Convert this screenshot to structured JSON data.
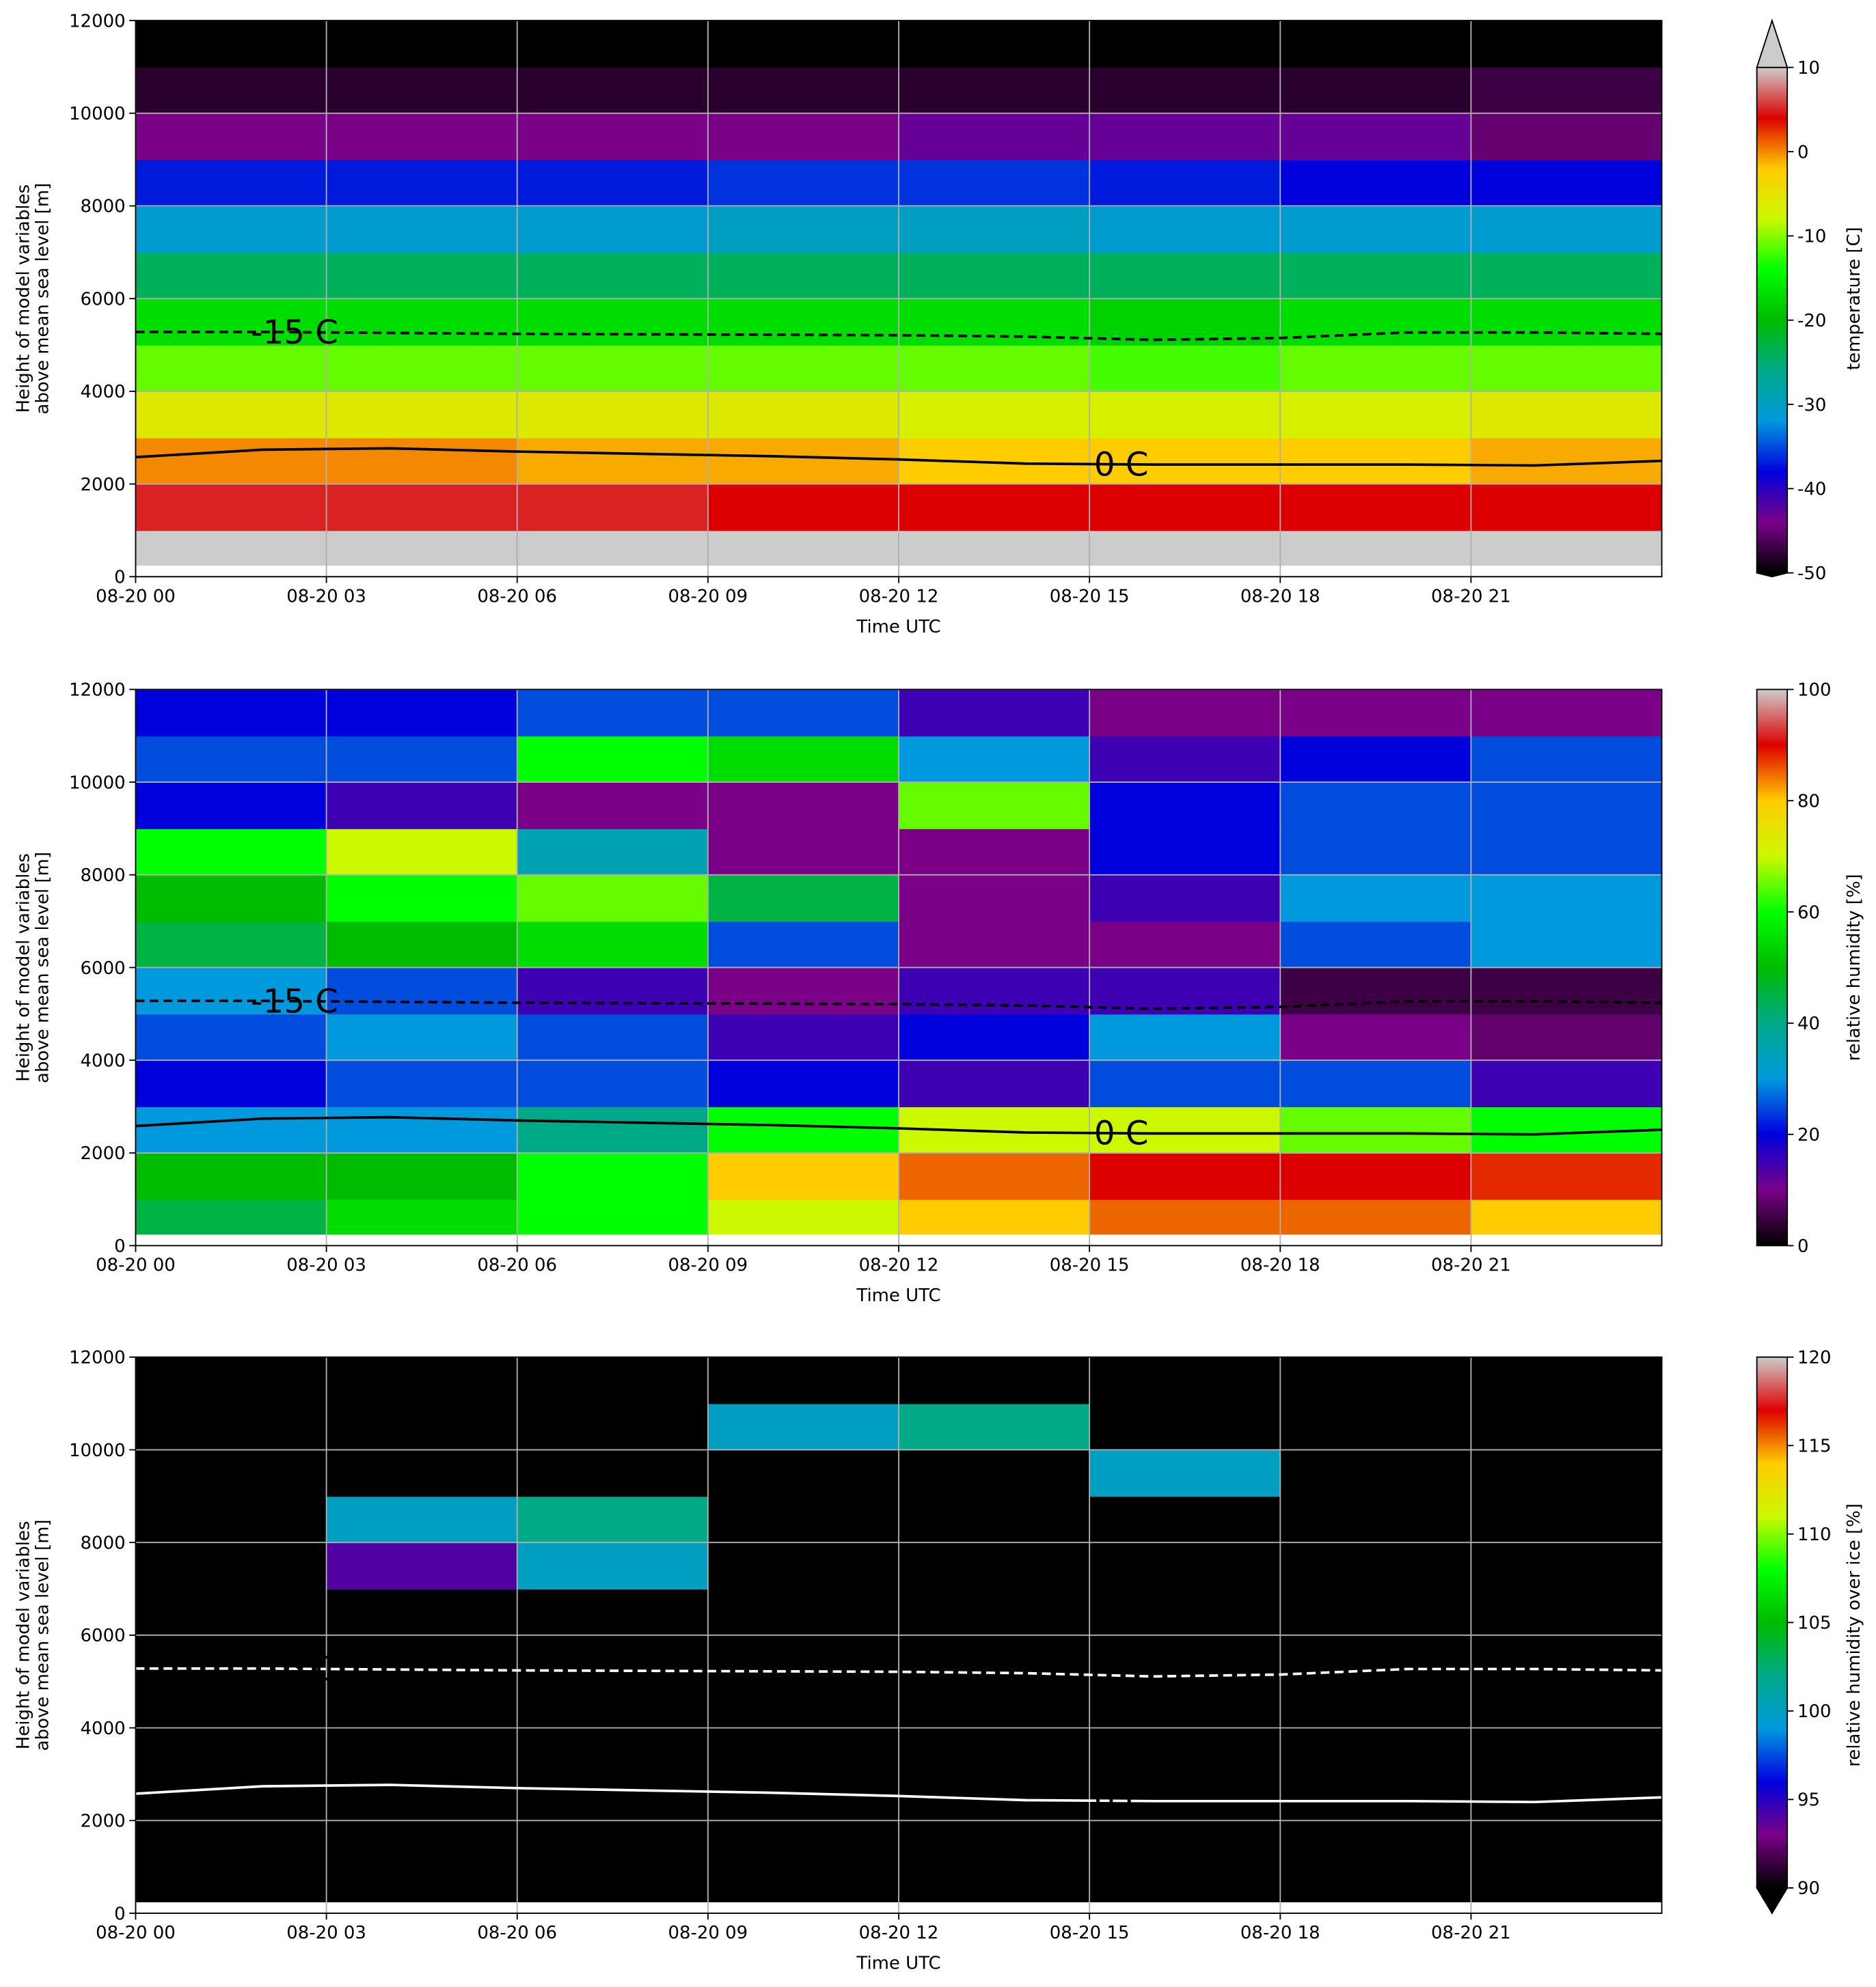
{
  "chart_data": [
    {
      "type": "heatmap",
      "ylabel": [
        "Height of model variables",
        "above mean sea level [m]"
      ],
      "xlabel": "Time UTC",
      "xlim": [
        0,
        24
      ],
      "xticks": [
        {
          "value": 0,
          "label": "08-20 00"
        },
        {
          "value": 3,
          "label": "08-20 03"
        },
        {
          "value": 6,
          "label": "08-20 06"
        },
        {
          "value": 9,
          "label": "08-20 09"
        },
        {
          "value": 12,
          "label": "08-20 12"
        },
        {
          "value": 15,
          "label": "08-20 15"
        },
        {
          "value": 18,
          "label": "08-20 18"
        },
        {
          "value": 21,
          "label": "08-20 21"
        }
      ],
      "ylim": [
        0,
        12000
      ],
      "yticks": [
        0,
        2000,
        4000,
        6000,
        8000,
        10000,
        12000
      ],
      "grid": true,
      "xbins": [
        0,
        3,
        6,
        9,
        12,
        15,
        18,
        21,
        24
      ],
      "ybins": [
        250,
        1000,
        2000,
        3000,
        4000,
        5000,
        6000,
        7000,
        8000,
        9000,
        10000,
        11000,
        12000
      ],
      "z": [
        [
          12,
          12,
          12,
          12,
          12,
          12,
          12,
          12
        ],
        [
          5,
          5,
          5,
          4,
          4,
          4,
          4,
          4
        ],
        [
          0,
          0,
          -1,
          -1,
          -2,
          -2,
          -2,
          -1
        ],
        [
          -6,
          -6,
          -6,
          -6,
          -7,
          -7,
          -7,
          -6
        ],
        [
          -11,
          -11,
          -11,
          -11,
          -11,
          -12,
          -11,
          -11
        ],
        [
          -17,
          -17,
          -17,
          -17,
          -17,
          -18,
          -17,
          -17
        ],
        [
          -24,
          -24,
          -24,
          -24,
          -24,
          -24,
          -24,
          -24
        ],
        [
          -31,
          -31,
          -31,
          -30,
          -30,
          -31,
          -31,
          -31
        ],
        [
          -37,
          -37,
          -37,
          -36,
          -36,
          -37,
          -38,
          -38
        ],
        [
          -44,
          -44,
          -44,
          -44,
          -43,
          -43,
          -43,
          -45
        ],
        [
          -48,
          -48,
          -48,
          -48,
          -48,
          -48,
          -48,
          -47
        ],
        [
          -55,
          -55,
          -55,
          -55,
          -55,
          -55,
          -55,
          -55
        ]
      ],
      "colorbar": {
        "label": "temperature [C]",
        "lim": [
          -50,
          10
        ],
        "ticks": [
          -50,
          -40,
          -30,
          -20,
          -10,
          0,
          10
        ],
        "extend": "both"
      },
      "colormap": [
        "#000000",
        "#7a0088",
        "#0000dd",
        "#0099dd",
        "#00aa88",
        "#00bb00",
        "#00ff00",
        "#ccf800",
        "#ffcc00",
        "#dd0000",
        "#cccccc"
      ],
      "under_color": "#000000",
      "over_color": "#cccccc",
      "contours": [
        {
          "name": "-15 C",
          "style": "dashed",
          "color": "#000000",
          "x": [
            0,
            2,
            4,
            6,
            8,
            10,
            12,
            14,
            16,
            18,
            20,
            22,
            24
          ],
          "values": [
            5280,
            5280,
            5260,
            5240,
            5230,
            5220,
            5210,
            5180,
            5110,
            5150,
            5270,
            5270,
            5240
          ]
        },
        {
          "name": "0 C",
          "style": "solid",
          "color": "#000000",
          "x": [
            0,
            2,
            4,
            6,
            8,
            10,
            12,
            14,
            16,
            18,
            20,
            22,
            24
          ],
          "values": [
            2580,
            2740,
            2770,
            2700,
            2650,
            2600,
            2530,
            2440,
            2420,
            2420,
            2420,
            2400,
            2500
          ]
        }
      ]
    },
    {
      "type": "heatmap",
      "ylabel": [
        "Height of model variables",
        "above mean sea level [m]"
      ],
      "xlabel": "Time UTC",
      "xlim": [
        0,
        24
      ],
      "xticks": [
        {
          "value": 0,
          "label": "08-20 00"
        },
        {
          "value": 3,
          "label": "08-20 03"
        },
        {
          "value": 6,
          "label": "08-20 06"
        },
        {
          "value": 9,
          "label": "08-20 09"
        },
        {
          "value": 12,
          "label": "08-20 12"
        },
        {
          "value": 15,
          "label": "08-20 15"
        },
        {
          "value": 18,
          "label": "08-20 18"
        },
        {
          "value": 21,
          "label": "08-20 21"
        }
      ],
      "ylim": [
        0,
        12000
      ],
      "yticks": [
        0,
        2000,
        4000,
        6000,
        8000,
        10000,
        12000
      ],
      "grid": true,
      "xbins": [
        0,
        3,
        6,
        9,
        12,
        15,
        18,
        21,
        24
      ],
      "ybins": [
        250,
        1000,
        2000,
        3000,
        4000,
        5000,
        6000,
        7000,
        8000,
        9000,
        10000,
        11000,
        12000
      ],
      "z": [
        [
          45,
          55,
          60,
          70,
          80,
          85,
          85,
          80
        ],
        [
          50,
          50,
          60,
          80,
          85,
          90,
          90,
          88
        ],
        [
          30,
          30,
          40,
          60,
          70,
          70,
          65,
          60
        ],
        [
          20,
          25,
          25,
          20,
          15,
          25,
          25,
          15
        ],
        [
          25,
          30,
          25,
          15,
          20,
          30,
          10,
          8
        ],
        [
          30,
          25,
          15,
          10,
          15,
          15,
          5,
          5
        ],
        [
          45,
          50,
          55,
          25,
          10,
          10,
          25,
          30
        ],
        [
          50,
          60,
          65,
          45,
          10,
          15,
          30,
          30
        ],
        [
          60,
          70,
          35,
          10,
          10,
          20,
          25,
          25
        ],
        [
          20,
          15,
          10,
          10,
          65,
          20,
          25,
          25
        ],
        [
          25,
          25,
          60,
          55,
          30,
          15,
          20,
          25
        ],
        [
          20,
          20,
          25,
          25,
          15,
          10,
          10,
          10
        ]
      ],
      "colorbar": {
        "label": "relative humidity [%]",
        "lim": [
          0,
          100
        ],
        "ticks": [
          0,
          20,
          40,
          60,
          80,
          100
        ],
        "extend": "neither"
      },
      "colormap": [
        "#000000",
        "#7a0088",
        "#0000dd",
        "#0099dd",
        "#00aa88",
        "#00bb00",
        "#00ff00",
        "#ccf800",
        "#ffcc00",
        "#dd0000",
        "#cccccc"
      ],
      "under_color": "#000000",
      "over_color": "#cccccc",
      "contours": [
        {
          "name": "-15 C",
          "style": "dashed",
          "color": "#000000",
          "x": [
            0,
            2,
            4,
            6,
            8,
            10,
            12,
            14,
            16,
            18,
            20,
            22,
            24
          ],
          "values": [
            5280,
            5280,
            5260,
            5240,
            5230,
            5220,
            5210,
            5180,
            5110,
            5150,
            5270,
            5270,
            5240
          ]
        },
        {
          "name": "0 C",
          "style": "solid",
          "color": "#000000",
          "x": [
            0,
            2,
            4,
            6,
            8,
            10,
            12,
            14,
            16,
            18,
            20,
            22,
            24
          ],
          "values": [
            2580,
            2740,
            2770,
            2700,
            2650,
            2600,
            2530,
            2440,
            2420,
            2420,
            2420,
            2400,
            2500
          ]
        }
      ]
    },
    {
      "type": "heatmap",
      "ylabel": [
        "Height of model variables",
        "above mean sea level [m]"
      ],
      "xlabel": "Time UTC",
      "xlim": [
        0,
        24
      ],
      "xticks": [
        {
          "value": 0,
          "label": "08-20 00"
        },
        {
          "value": 3,
          "label": "08-20 03"
        },
        {
          "value": 6,
          "label": "08-20 06"
        },
        {
          "value": 9,
          "label": "08-20 09"
        },
        {
          "value": 12,
          "label": "08-20 12"
        },
        {
          "value": 15,
          "label": "08-20 15"
        },
        {
          "value": 18,
          "label": "08-20 18"
        },
        {
          "value": 21,
          "label": "08-20 21"
        }
      ],
      "ylim": [
        0,
        12000
      ],
      "yticks": [
        0,
        2000,
        4000,
        6000,
        8000,
        10000,
        12000
      ],
      "grid": true,
      "xbins": [
        0,
        3,
        6,
        9,
        12,
        15,
        18,
        21,
        24
      ],
      "ybins": [
        250,
        1000,
        2000,
        3000,
        4000,
        5000,
        6000,
        7000,
        8000,
        9000,
        10000,
        11000,
        12000
      ],
      "z": [
        [
          80,
          80,
          80,
          80,
          80,
          80,
          80,
          80
        ],
        [
          80,
          80,
          80,
          80,
          80,
          80,
          80,
          80
        ],
        [
          80,
          80,
          80,
          80,
          80,
          80,
          80,
          80
        ],
        [
          80,
          80,
          80,
          80,
          80,
          80,
          80,
          80
        ],
        [
          80,
          80,
          80,
          80,
          80,
          80,
          80,
          80
        ],
        [
          80,
          80,
          80,
          80,
          80,
          80,
          80,
          80
        ],
        [
          80,
          80,
          80,
          80,
          80,
          80,
          80,
          80
        ],
        [
          80,
          94,
          100,
          80,
          80,
          80,
          80,
          80
        ],
        [
          80,
          100,
          102,
          80,
          80,
          80,
          80,
          80
        ],
        [
          80,
          80,
          80,
          80,
          80,
          100,
          80,
          80
        ],
        [
          80,
          80,
          80,
          100,
          102,
          80,
          80,
          80
        ],
        [
          80,
          80,
          80,
          80,
          80,
          80,
          80,
          80
        ]
      ],
      "colorbar": {
        "label": "relative humidity over ice [%]",
        "lim": [
          90,
          120
        ],
        "ticks": [
          90,
          95,
          100,
          105,
          110,
          115,
          120
        ],
        "extend": "min"
      },
      "colormap": [
        "#000000",
        "#7a0088",
        "#0000dd",
        "#0099dd",
        "#00aa88",
        "#00bb00",
        "#00ff00",
        "#ccf800",
        "#ffcc00",
        "#dd0000",
        "#cccccc"
      ],
      "under_color": "#000000",
      "over_color": "#cccccc",
      "contours": [
        {
          "name": "-15 C",
          "style": "dashed",
          "color": "#ffffff",
          "x": [
            0,
            2,
            4,
            6,
            8,
            10,
            12,
            14,
            16,
            18,
            20,
            22,
            24
          ],
          "values": [
            5280,
            5280,
            5260,
            5240,
            5230,
            5220,
            5210,
            5180,
            5110,
            5150,
            5270,
            5270,
            5240
          ]
        },
        {
          "name": "0 C",
          "style": "solid",
          "color": "#ffffff",
          "x": [
            0,
            2,
            4,
            6,
            8,
            10,
            12,
            14,
            16,
            18,
            20,
            22,
            24
          ],
          "values": [
            2580,
            2740,
            2770,
            2700,
            2650,
            2600,
            2530,
            2440,
            2420,
            2420,
            2420,
            2400,
            2500
          ]
        }
      ]
    }
  ]
}
